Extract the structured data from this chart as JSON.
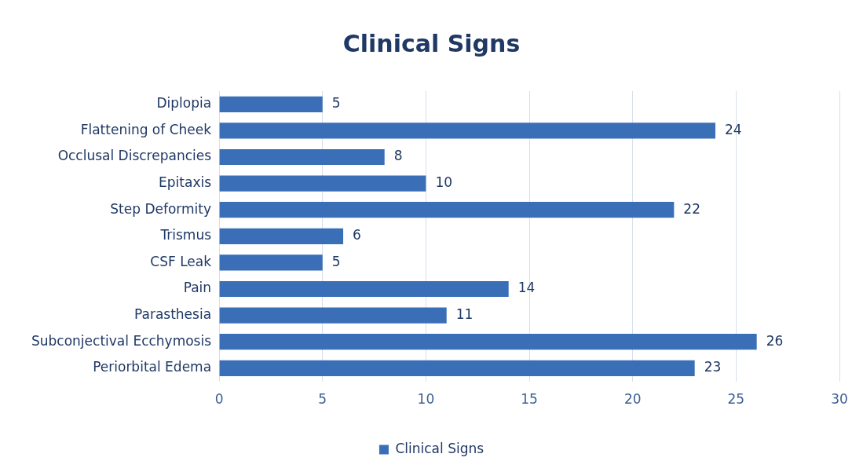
{
  "chart_data": {
    "type": "bar",
    "orientation": "horizontal",
    "title": "Clinical Signs",
    "categories": [
      "Diplopia",
      "Flattening of Cheek",
      "Occlusal Discrepancies",
      "Epitaxis",
      "Step Deformity",
      "Trismus",
      "CSF Leak",
      "Pain",
      "Parasthesia",
      "Subconjectival Ecchymosis",
      "Periorbital Edema"
    ],
    "series": [
      {
        "name": "Clinical Signs",
        "color": "#3a6fb8",
        "values": [
          5,
          24,
          8,
          10,
          22,
          6,
          5,
          14,
          11,
          26,
          23
        ]
      }
    ],
    "xlim": [
      0,
      30
    ],
    "xticks": [
      0,
      5,
      10,
      15,
      20,
      25,
      30
    ],
    "grid": "x",
    "legend": "bottom",
    "data_labels": true
  }
}
